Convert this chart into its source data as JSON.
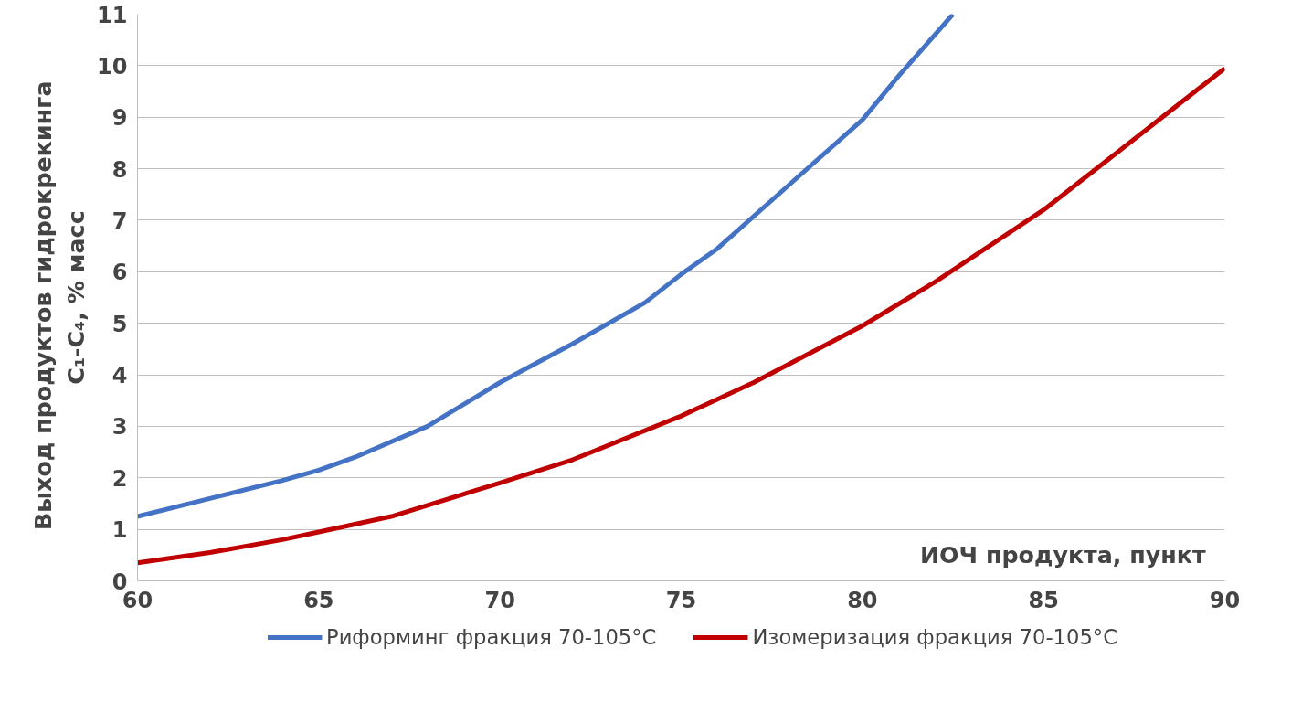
{
  "chart_data": {
    "type": "line",
    "xlabel": "ИОЧ  продукта, пункт",
    "ylabel": "Выход  продуктов  гидрокрекинга\nC₁-C₄, % масс",
    "x": [
      60,
      62,
      64,
      65,
      66,
      68,
      70,
      72,
      74,
      75,
      76,
      78,
      80,
      81,
      82,
      82.5
    ],
    "series": [
      {
        "name": "Риформинг фракция 70-105°C",
        "color": "#4472c4",
        "values": [
          1.25,
          1.6,
          1.95,
          2.15,
          2.4,
          3.0,
          3.85,
          4.6,
          5.4,
          5.95,
          6.45,
          7.7,
          8.95,
          9.8,
          10.6,
          11
        ]
      },
      {
        "name": "Изомеризация фракция 70-105°C",
        "color": "#c00000",
        "x": [
          60,
          62,
          64,
          65,
          67,
          70,
          72,
          75,
          77,
          80,
          82,
          85,
          87,
          88,
          90
        ],
        "values": [
          0.35,
          0.55,
          0.8,
          0.95,
          1.25,
          1.9,
          2.35,
          3.2,
          3.85,
          4.95,
          5.8,
          7.2,
          8.3,
          8.85,
          9.95
        ]
      }
    ],
    "xlim": [
      60,
      90
    ],
    "xticks": [
      60,
      65,
      70,
      75,
      80,
      85,
      90
    ],
    "ylim": [
      0,
      11
    ],
    "yticks": [
      0,
      1,
      2,
      3,
      4,
      5,
      6,
      7,
      8,
      9,
      10,
      11
    ],
    "grid": "y",
    "legend": "bottom",
    "marker": "none",
    "line_style": "solid"
  }
}
